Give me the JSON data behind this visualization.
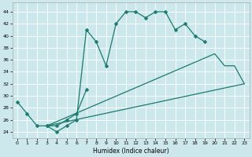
{
  "title": "",
  "xlabel": "Humidex (Indice chaleur)",
  "background_color": "#cce8ec",
  "grid_color": "#ffffff",
  "line_color": "#1a7a6e",
  "xlim": [
    -0.5,
    23.5
  ],
  "ylim": [
    23.0,
    45.5
  ],
  "xticks": [
    0,
    1,
    2,
    3,
    4,
    5,
    6,
    7,
    8,
    9,
    10,
    11,
    12,
    13,
    14,
    15,
    16,
    17,
    18,
    19,
    20,
    21,
    22,
    23
  ],
  "yticks": [
    24,
    26,
    28,
    30,
    32,
    34,
    36,
    38,
    40,
    42,
    44
  ],
  "series1_x": [
    0,
    1,
    2,
    3,
    4,
    5,
    6,
    7,
    8,
    9,
    10,
    11,
    12,
    13,
    14,
    15,
    16,
    17,
    18,
    19
  ],
  "series1_y": [
    29,
    27,
    25,
    25,
    24,
    25,
    26,
    41,
    39,
    35,
    42,
    44,
    44,
    43,
    44,
    44,
    41,
    42,
    40,
    39
  ],
  "series2_x": [
    3,
    4,
    5,
    6,
    7
  ],
  "series2_y": [
    25,
    25,
    26,
    27,
    31
  ],
  "series3_x": [
    3,
    20,
    21,
    22,
    23
  ],
  "series3_y": [
    25,
    37,
    35,
    35,
    32
  ],
  "series4_x": [
    3,
    23
  ],
  "series4_y": [
    25,
    32
  ]
}
